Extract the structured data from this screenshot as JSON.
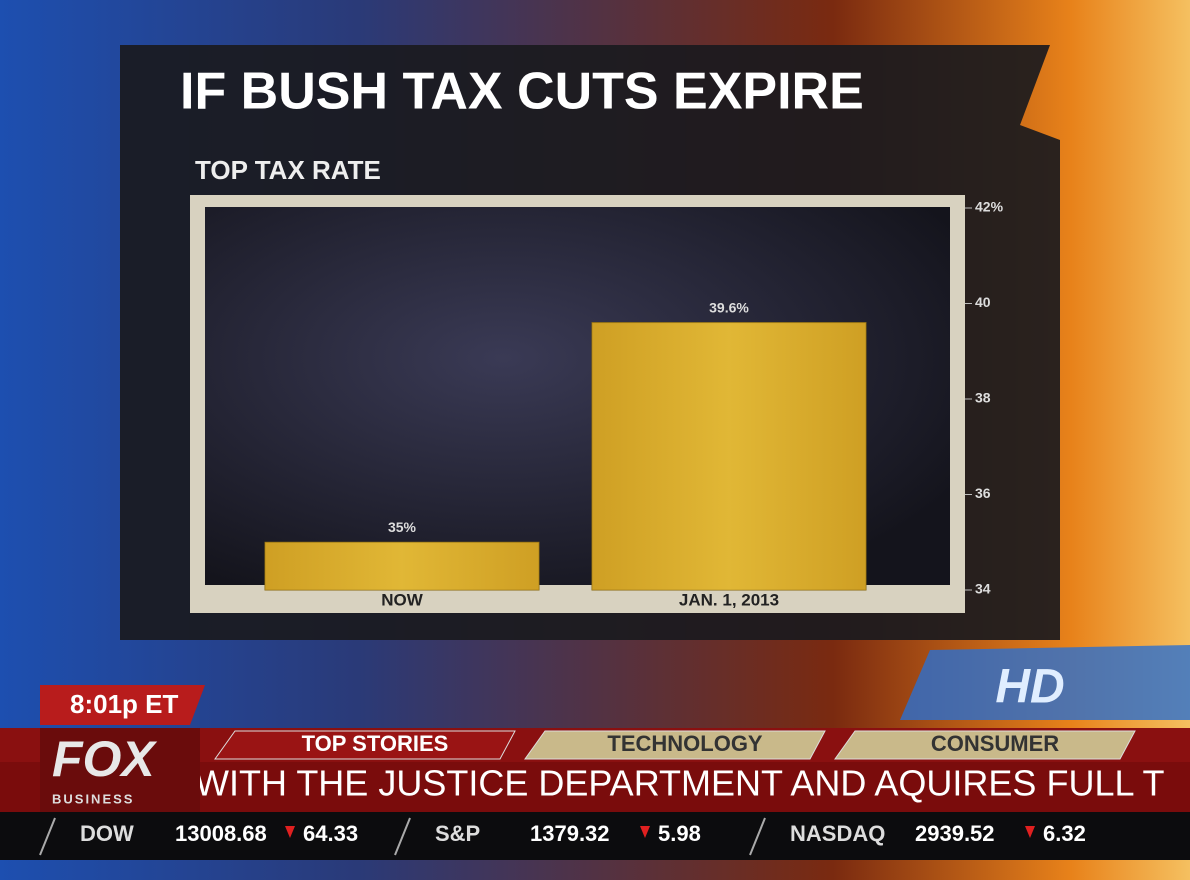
{
  "chart_data": {
    "type": "bar",
    "title": "IF BUSH TAX CUTS EXPIRE",
    "subtitle": "TOP TAX RATE",
    "categories": [
      "NOW",
      "JAN. 1, 2013"
    ],
    "values": [
      35,
      39.6
    ],
    "value_labels": [
      "35%",
      "39.6%"
    ],
    "color": "#d9ad2c",
    "ylim": [
      34,
      42
    ],
    "yticks": [
      {
        "value": 42,
        "label": "42%"
      },
      40,
      38,
      36,
      34
    ]
  },
  "broadcast": {
    "time": "8:01p ET",
    "logo": "FOX",
    "network": "BUSINESS",
    "hd": "HD",
    "tabs": [
      "TOP STORIES",
      "TECHNOLOGY",
      "CONSUMER"
    ],
    "headline": "WITH THE JUSTICE DEPARTMENT AND AQUIRES FULL T",
    "ticker": [
      {
        "name": "DOW",
        "value": "13008.68",
        "change": "64.33"
      },
      {
        "name": "S&P",
        "value": "1379.32",
        "change": "5.98"
      },
      {
        "name": "NASDAQ",
        "value": "2939.52",
        "change": "6.32"
      }
    ]
  }
}
